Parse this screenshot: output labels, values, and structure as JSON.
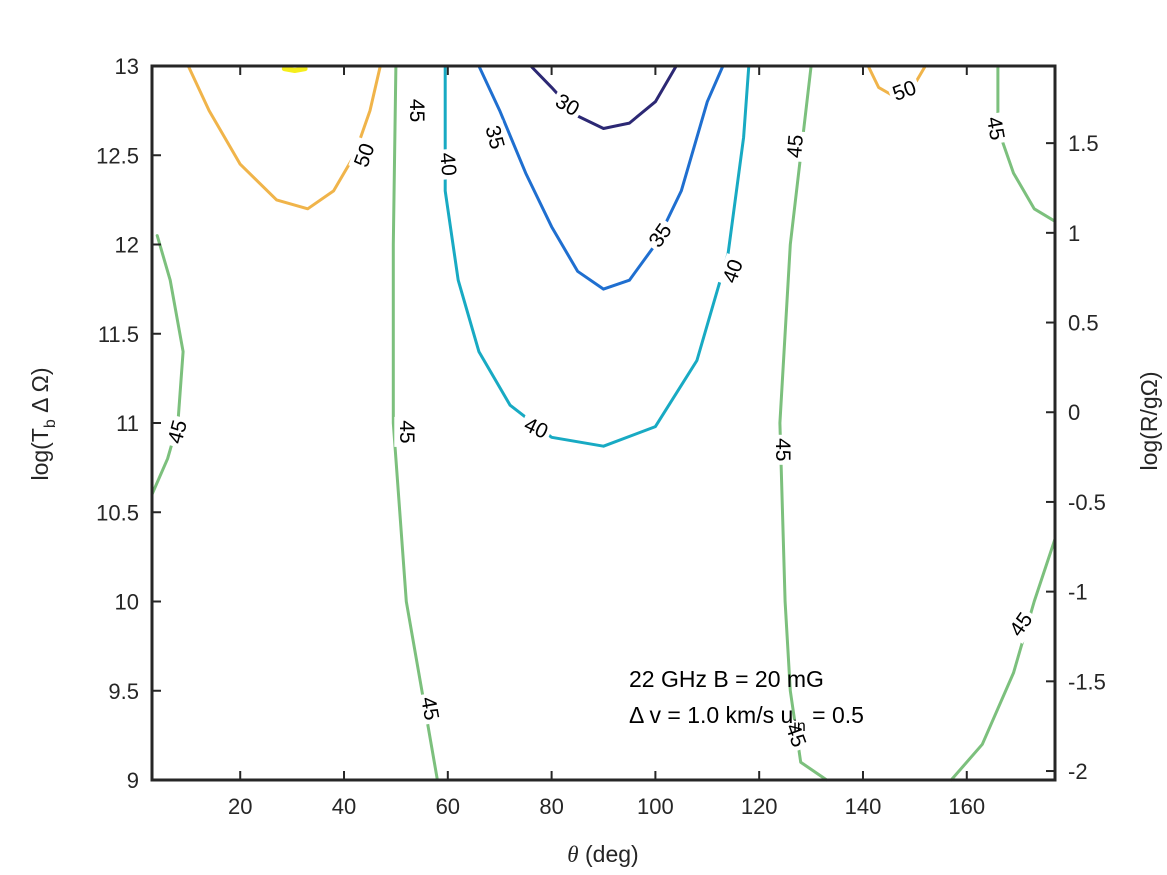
{
  "chart_data": {
    "type": "contour",
    "xlabel_symbol": "θ",
    "xlabel_rest": " (deg)",
    "ylabel_left": "log(T",
    "ylabel_left_sub": "b",
    "ylabel_left_rest": " Δ Ω)",
    "ylabel_right": "log(R/gΩ)",
    "xlim": [
      3,
      177
    ],
    "ylim": [
      9,
      13
    ],
    "y2lim": [
      -2.05,
      1.93
    ],
    "xticks": [
      20,
      40,
      60,
      80,
      100,
      120,
      140,
      160
    ],
    "yticks": [
      "9",
      "9.5",
      "10",
      "10.5",
      "11",
      "11.5",
      "12",
      "12.5",
      "13"
    ],
    "y2ticks": [
      "-2",
      "-1.5",
      "-1",
      "-0.5",
      "0",
      "0.5",
      "1",
      "1.5"
    ],
    "annotation": {
      "line1": "22 GHz  B = 20 mG",
      "line2_a": "Δ v = 1.0 km/s  u",
      "line2_sub": "in",
      "line2_b": " = 0.5"
    },
    "colors": {
      "30": "#2c2874",
      "35": "#1f6fd0",
      "40": "#18aac3",
      "45": "#7cc07d",
      "50": "#f0b44a",
      "55": "#f5ee1c"
    },
    "contours": [
      {
        "level": "30",
        "points": [
          [
            76,
            13.0
          ],
          [
            80,
            12.88
          ],
          [
            85,
            12.72
          ],
          [
            90,
            12.65
          ],
          [
            95,
            12.68
          ],
          [
            100,
            12.8
          ],
          [
            104,
            13.0
          ]
        ]
      },
      {
        "level": "35",
        "points": [
          [
            66,
            13.0
          ],
          [
            70,
            12.75
          ],
          [
            75,
            12.4
          ],
          [
            80,
            12.1
          ],
          [
            85,
            11.85
          ],
          [
            90,
            11.75
          ],
          [
            95,
            11.8
          ],
          [
            100,
            12.0
          ],
          [
            105,
            12.3
          ],
          [
            110,
            12.8
          ],
          [
            113,
            13.0
          ]
        ]
      },
      {
        "level": "40",
        "points": [
          [
            59.5,
            13.0
          ],
          [
            59.5,
            12.3
          ],
          [
            62,
            11.8
          ],
          [
            66,
            11.4
          ],
          [
            72,
            11.1
          ],
          [
            80,
            10.92
          ],
          [
            90,
            10.87
          ],
          [
            100,
            10.98
          ],
          [
            108,
            11.35
          ],
          [
            114,
            11.95
          ],
          [
            117,
            12.6
          ],
          [
            118,
            13.0
          ]
        ]
      },
      {
        "level": "45",
        "points": [
          [
            4,
            12.05
          ],
          [
            6.5,
            11.8
          ],
          [
            9,
            11.4
          ],
          [
            8,
            11.0
          ],
          [
            6,
            10.8
          ],
          [
            3,
            10.6
          ]
        ]
      },
      {
        "level": "45",
        "points": [
          [
            50,
            13.0
          ],
          [
            49.5,
            12.0
          ],
          [
            49.5,
            11.0
          ],
          [
            52,
            10.0
          ],
          [
            55,
            9.5
          ],
          [
            58,
            9.0
          ]
        ]
      },
      {
        "level": "45",
        "points": [
          [
            130,
            13.0
          ],
          [
            128,
            12.5
          ],
          [
            126,
            12.0
          ],
          [
            124,
            11.0
          ],
          [
            125,
            10.0
          ],
          [
            126,
            9.5
          ],
          [
            128,
            9.1
          ],
          [
            133,
            9.0
          ]
        ]
      },
      {
        "level": "45",
        "points": [
          [
            166,
            13.0
          ],
          [
            166,
            12.65
          ],
          [
            169,
            12.4
          ],
          [
            173,
            12.2
          ],
          [
            177,
            12.13
          ]
        ]
      },
      {
        "level": "45",
        "points": [
          [
            157,
            9.0
          ],
          [
            163,
            9.2
          ],
          [
            169,
            9.6
          ],
          [
            173,
            10.0
          ],
          [
            177,
            10.35
          ]
        ]
      },
      {
        "level": "50",
        "points": [
          [
            10,
            13.0
          ],
          [
            14,
            12.75
          ],
          [
            20,
            12.45
          ],
          [
            27,
            12.25
          ],
          [
            33,
            12.2
          ],
          [
            38,
            12.3
          ],
          [
            42,
            12.5
          ],
          [
            45,
            12.75
          ],
          [
            47,
            13.0
          ]
        ]
      },
      {
        "level": "50",
        "points": [
          [
            141,
            13.0
          ],
          [
            143,
            12.88
          ],
          [
            146,
            12.83
          ],
          [
            150,
            12.9
          ],
          [
            152,
            13.0
          ]
        ]
      },
      {
        "level": "55",
        "points": [
          [
            28.5,
            12.985
          ],
          [
            30.5,
            12.975
          ],
          [
            32.5,
            12.985
          ]
        ]
      }
    ],
    "labels": [
      {
        "text": "30",
        "x": 83,
        "y": 12.78,
        "angle": 30
      },
      {
        "text": "35",
        "x": 69,
        "y": 12.6,
        "angle": 75
      },
      {
        "text": "35",
        "x": 101,
        "y": 12.05,
        "angle": -55
      },
      {
        "text": "40",
        "x": 60,
        "y": 12.45,
        "angle": 85
      },
      {
        "text": "40",
        "x": 77,
        "y": 10.97,
        "angle": 25
      },
      {
        "text": "40",
        "x": 115,
        "y": 11.85,
        "angle": -70
      },
      {
        "text": "45",
        "x": 54,
        "y": 12.75,
        "angle": 90
      },
      {
        "text": "45",
        "x": 52,
        "y": 10.95,
        "angle": 90
      },
      {
        "text": "45",
        "x": 56.5,
        "y": 9.4,
        "angle": 80
      },
      {
        "text": "45",
        "x": 8,
        "y": 10.95,
        "angle": -75
      },
      {
        "text": "45",
        "x": 127,
        "y": 12.55,
        "angle": -85
      },
      {
        "text": "45",
        "x": 124.5,
        "y": 10.85,
        "angle": 90
      },
      {
        "text": "45",
        "x": 127,
        "y": 9.25,
        "angle": 70
      },
      {
        "text": "45",
        "x": 165.5,
        "y": 12.65,
        "angle": 80
      },
      {
        "text": "45",
        "x": 170.5,
        "y": 9.87,
        "angle": -55
      },
      {
        "text": "50",
        "x": 44,
        "y": 12.5,
        "angle": -70
      },
      {
        "text": "50",
        "x": 148,
        "y": 12.86,
        "angle": -20
      }
    ]
  }
}
